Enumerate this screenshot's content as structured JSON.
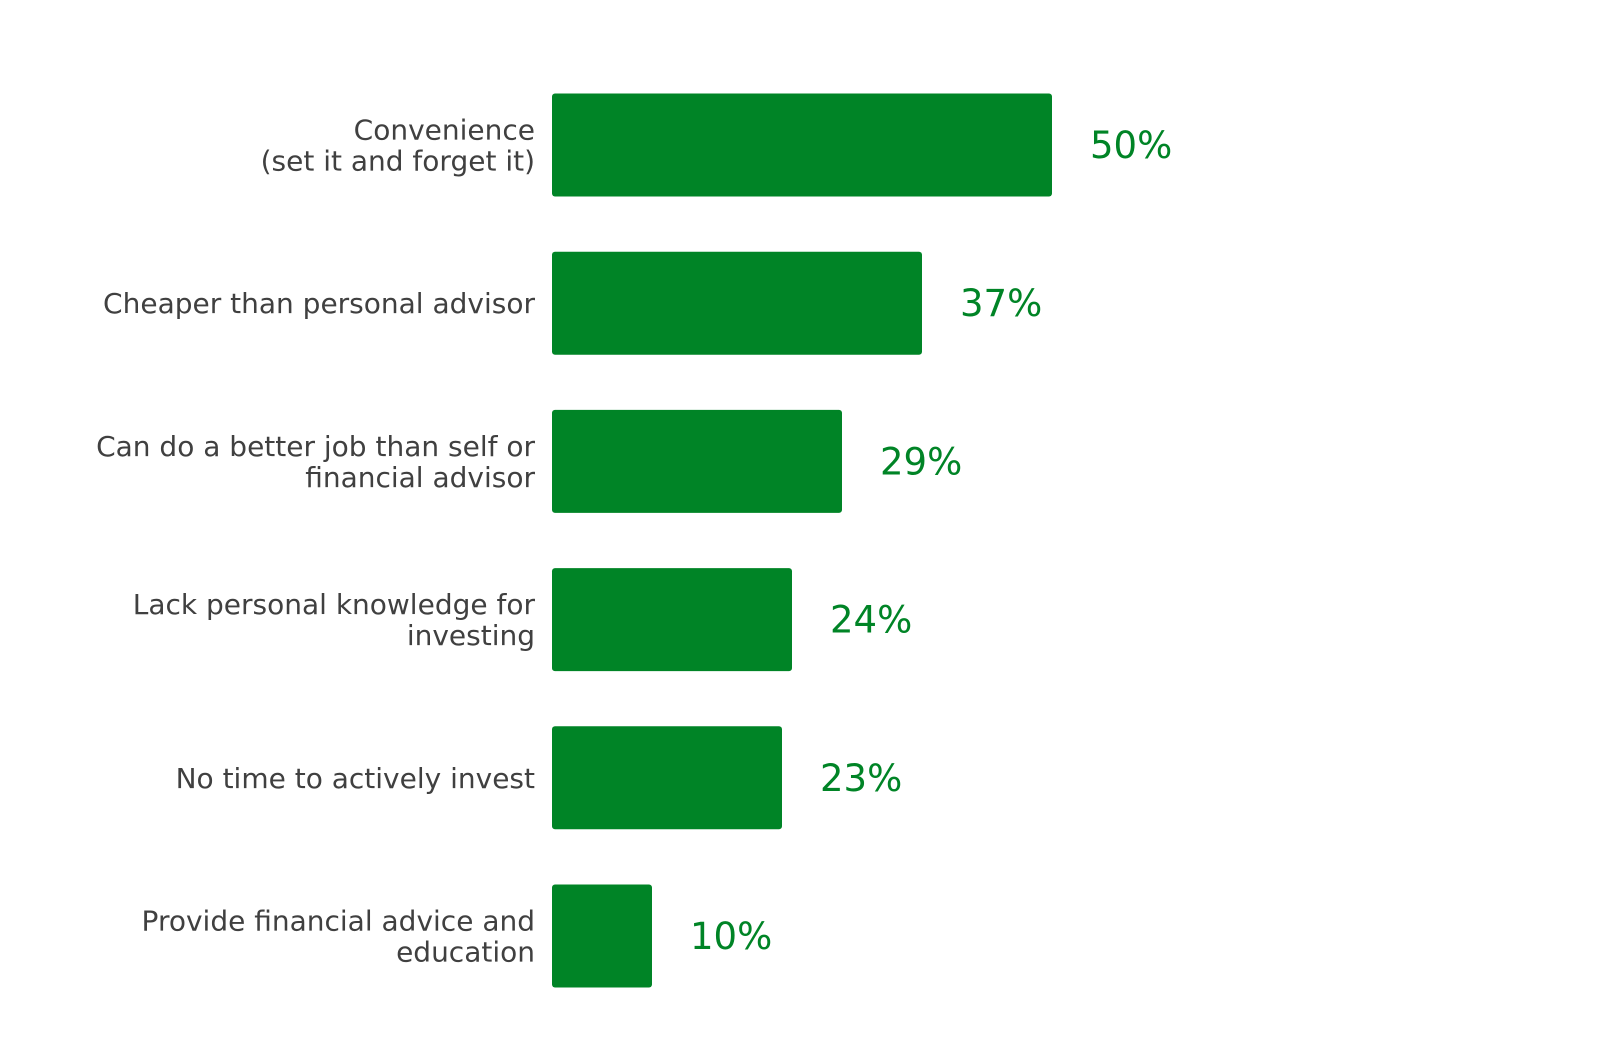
{
  "chart_data": {
    "type": "bar",
    "orientation": "horizontal",
    "categories": [
      [
        "Convenience",
        "(set it and forget it)"
      ],
      [
        "Cheaper than personal advisor"
      ],
      [
        "Can do a better job than self or",
        "financial advisor"
      ],
      [
        "Lack personal knowledge for",
        "investing"
      ],
      [
        "No time to actively invest"
      ],
      [
        "Provide financial advice and",
        "education"
      ]
    ],
    "values": [
      50,
      37,
      29,
      24,
      23,
      10
    ],
    "value_labels": [
      "50%",
      "37%",
      "29%",
      "24%",
      "23%",
      "10%"
    ],
    "unit": "%",
    "title": "",
    "xlabel": "",
    "ylabel": "",
    "xlim": [
      0,
      50
    ],
    "grid": false,
    "legend": "none",
    "colors": {
      "bar": "#008426",
      "value_label": "#008426",
      "category_label": "#404040"
    }
  }
}
